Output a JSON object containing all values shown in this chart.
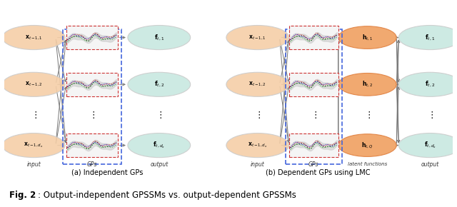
{
  "fig_width": 6.4,
  "fig_height": 2.9,
  "dpi": 100,
  "bg_color": "#ffffff",
  "input_circle_color": "#f5cfa8",
  "output_circle_color": "#c8e8e0",
  "latent_circle_color": "#f0a060",
  "gp_box_blue": "#4466dd",
  "gp_box_red": "#cc3333",
  "arrow_color": "#777777",
  "subtitle_a": "(a) Independent GPs",
  "subtitle_b": "(b) Dependent GPs using LMC",
  "caption_bold": "Fig. 2",
  "caption_colon": ":",
  "caption_rest": " Output-independent GPSSMs vs. output-dependent GPSSMs",
  "label_input1": "$\\mathbf{x}_{t-1,1}$",
  "label_input2": "$\\mathbf{x}_{t-1,2}$",
  "label_inputd": "$\\mathbf{x}_{t-1,d_x}$",
  "label_out1": "$\\mathbf{f}_{t,1}$",
  "label_out2": "$\\mathbf{f}_{t,2}$",
  "label_outd": "$\\mathbf{f}_{t,d_x}$",
  "label_h1": "$\\mathbf{h}_{t,1}$",
  "label_h2": "$\\mathbf{h}_{t,2}$",
  "label_hQ": "$\\mathbf{h}_{t,Q}$",
  "text_input": "input",
  "text_gps": "GPs",
  "text_output": "output",
  "text_latent": "latent functions",
  "gp_colors": [
    "#333333",
    "#cc2222",
    "#22aa22",
    "#2222cc"
  ],
  "gp_shade_color": "#cccccc"
}
